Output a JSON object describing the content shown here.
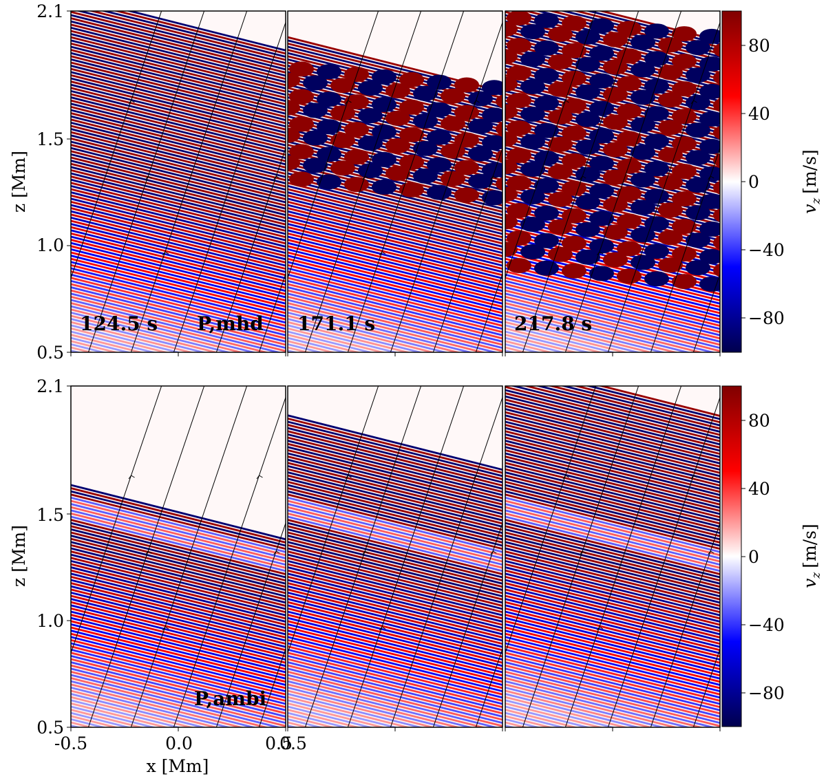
{
  "figure": {
    "colormap": [
      "#00004d",
      "#0000ff",
      "#ffffff",
      "#ff0000",
      "#800000"
    ],
    "field_line_color": "#000000"
  },
  "chart_data": [
    {
      "type": "heatmap",
      "row": "top",
      "model_label": "P,mhd",
      "quantity": "v_z",
      "unit": "[m/s]",
      "x_label": "x [Mm]",
      "y_label": "z [Mm]",
      "x_range": [
        -0.5,
        0.5
      ],
      "y_range": [
        0.5,
        2.1
      ],
      "y_ticks": [
        "0.5",
        "1.0",
        "1.5",
        "2.1"
      ],
      "x_ticks": [],
      "colorbar_range": [
        -100,
        100
      ],
      "colorbar_ticks": [
        "−80",
        "−40",
        "0",
        "40",
        "80"
      ],
      "panels": [
        {
          "time_label": "124.5 s",
          "model_label": "P,mhd",
          "wave_top_z": 2.05,
          "wave_front_z": 2.05,
          "nonlinear_top_z": 1.35,
          "nonlinear_bottom_z": 1.35
        },
        {
          "time_label": "171.1 s",
          "model_label": "",
          "wave_top_z": 1.86,
          "wave_front_z": 1.86,
          "nonlinear_top_z": 1.86,
          "nonlinear_bottom_z": 1.3
        },
        {
          "time_label": "217.8 s",
          "model_label": "",
          "wave_top_z": 2.1,
          "wave_front_z": 2.1,
          "nonlinear_top_z": 2.1,
          "nonlinear_bottom_z": 0.88
        }
      ]
    },
    {
      "type": "heatmap",
      "row": "bottom",
      "model_label": "P,ambi",
      "quantity": "v_z",
      "unit": "[m/s]",
      "x_label": "x [Mm]",
      "y_label": "z [Mm]",
      "x_range": [
        -0.5,
        0.5
      ],
      "y_range": [
        0.5,
        2.1
      ],
      "y_ticks": [
        "0.5",
        "1.0",
        "1.5",
        "2.1"
      ],
      "x_ticks": [
        "-0.5",
        "0.0",
        "0.5"
      ],
      "extra_x_tick": "0.5",
      "colorbar_range": [
        -100,
        100
      ],
      "colorbar_ticks": [
        "−80",
        "−40",
        "0",
        "40",
        "80"
      ],
      "panels": [
        {
          "time_label": "",
          "model_label": "P,ambi",
          "wave_top_z": 1.52,
          "wave_front_z": 1.52
        },
        {
          "time_label": "",
          "model_label": "",
          "wave_top_z": 1.84,
          "wave_front_z": 1.84
        },
        {
          "time_label": "",
          "model_label": "",
          "wave_top_z": 2.1,
          "wave_front_z": 2.1
        }
      ]
    }
  ]
}
